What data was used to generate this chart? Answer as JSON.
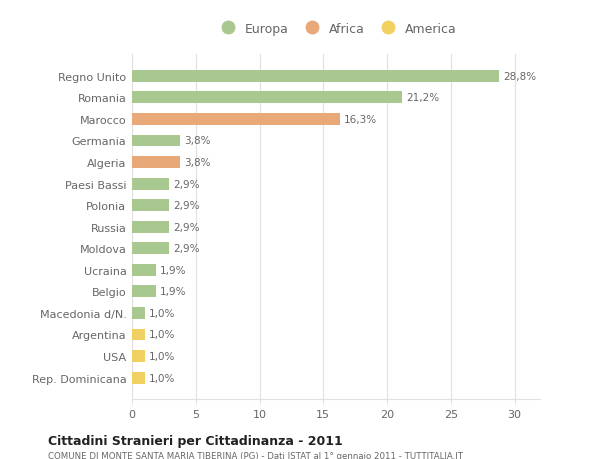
{
  "categories": [
    "Regno Unito",
    "Romania",
    "Marocco",
    "Germania",
    "Algeria",
    "Paesi Bassi",
    "Polonia",
    "Russia",
    "Moldova",
    "Ucraina",
    "Belgio",
    "Macedonia d/N.",
    "Argentina",
    "USA",
    "Rep. Dominicana"
  ],
  "values": [
    28.8,
    21.2,
    16.3,
    3.8,
    3.8,
    2.9,
    2.9,
    2.9,
    2.9,
    1.9,
    1.9,
    1.0,
    1.0,
    1.0,
    1.0
  ],
  "labels": [
    "28,8%",
    "21,2%",
    "16,3%",
    "3,8%",
    "3,8%",
    "2,9%",
    "2,9%",
    "2,9%",
    "2,9%",
    "1,9%",
    "1,9%",
    "1,0%",
    "1,0%",
    "1,0%",
    "1,0%"
  ],
  "colors": [
    "#a8c890",
    "#a8c890",
    "#e8a878",
    "#a8c890",
    "#e8a878",
    "#a8c890",
    "#a8c890",
    "#a8c890",
    "#a8c890",
    "#a8c890",
    "#a8c890",
    "#a8c890",
    "#f0d060",
    "#f0d060",
    "#f0d060"
  ],
  "legend_labels": [
    "Europa",
    "Africa",
    "America"
  ],
  "legend_colors": [
    "#a8c890",
    "#e8a878",
    "#f0d060"
  ],
  "title": "Cittadini Stranieri per Cittadinanza - 2011",
  "subtitle": "COMUNE DI MONTE SANTA MARIA TIBERINA (PG) - Dati ISTAT al 1° gennaio 2011 - TUTTITALIA.IT",
  "xlim": [
    0,
    32
  ],
  "xticks": [
    0,
    5,
    10,
    15,
    20,
    25,
    30
  ],
  "background_color": "#ffffff",
  "grid_color": "#e0e0e0",
  "bar_height": 0.55,
  "text_color": "#666666",
  "title_color": "#222222",
  "subtitle_color": "#666666",
  "label_fontsize": 7.5,
  "tick_fontsize": 8.0
}
